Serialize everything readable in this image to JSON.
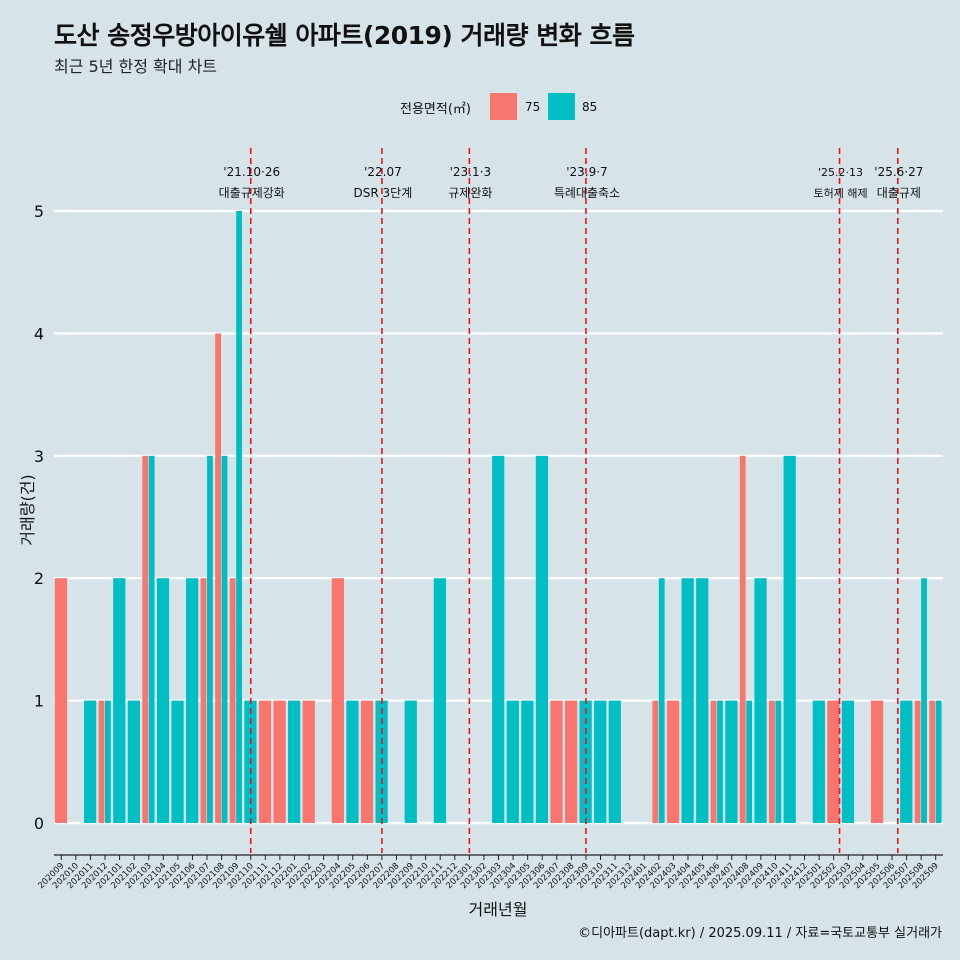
{
  "header": {
    "title": "도산 송정우방아이유쉘 아파트(2019) 거래량 변화 흐름",
    "subtitle": "최근 5년 한정 확대 차트"
  },
  "legend": {
    "title": "전용면적(㎡)",
    "items": [
      {
        "label": "75",
        "color": "#f8766d"
      },
      {
        "label": "85",
        "color": "#00bfc4"
      }
    ]
  },
  "caption": "©디아파트(dapt.kr) / 2025.09.11 / 자료=국토교통부 실거래가",
  "chart_data": {
    "type": "bar",
    "title": "도산 송정우방아이유쉘 아파트(2019) 거래량 변화 흐름",
    "xlabel": "거래년월",
    "ylabel": "거래량(건)",
    "ylim": [
      0,
      5
    ],
    "yticks": [
      0,
      1,
      2,
      3,
      4,
      5
    ],
    "categories": [
      "202009",
      "202010",
      "202011",
      "202012",
      "202101",
      "202102",
      "202103",
      "202104",
      "202105",
      "202106",
      "202107",
      "202108",
      "202109",
      "202110",
      "202111",
      "202112",
      "202201",
      "202202",
      "202203",
      "202204",
      "202205",
      "202206",
      "202207",
      "202208",
      "202209",
      "202210",
      "202211",
      "202212",
      "202301",
      "202302",
      "202303",
      "202304",
      "202305",
      "202306",
      "202307",
      "202308",
      "202309",
      "202310",
      "202311",
      "202312",
      "202401",
      "202402",
      "202403",
      "202404",
      "202405",
      "202406",
      "202407",
      "202408",
      "202409",
      "202410",
      "202411",
      "202412",
      "202501",
      "202502",
      "202503",
      "202504",
      "202505",
      "202506",
      "202507",
      "202508",
      "202509"
    ],
    "series": [
      {
        "name": "75",
        "color": "#f8766d",
        "values": [
          2,
          0,
          0,
          1,
          0,
          0,
          3,
          0,
          0,
          0,
          2,
          4,
          2,
          0,
          1,
          1,
          0,
          1,
          0,
          2,
          0,
          1,
          0,
          0,
          0,
          0,
          0,
          0,
          0,
          0,
          0,
          0,
          0,
          0,
          1,
          1,
          0,
          0,
          0,
          0,
          0,
          1,
          1,
          0,
          0,
          1,
          0,
          3,
          0,
          1,
          0,
          0,
          0,
          1,
          0,
          0,
          1,
          0,
          0,
          1,
          1
        ]
      },
      {
        "name": "85",
        "color": "#00bfc4",
        "values": [
          0,
          0,
          1,
          1,
          2,
          1,
          3,
          2,
          1,
          2,
          3,
          3,
          5,
          1,
          0,
          0,
          1,
          0,
          0,
          0,
          1,
          0,
          1,
          0,
          1,
          0,
          2,
          0,
          0,
          0,
          3,
          1,
          1,
          3,
          0,
          0,
          1,
          1,
          1,
          0,
          0,
          2,
          0,
          2,
          2,
          1,
          1,
          1,
          2,
          1,
          3,
          0,
          1,
          0,
          1,
          0,
          0,
          0,
          1,
          2,
          1
        ]
      }
    ],
    "events": [
      {
        "month": "202110",
        "date": "'21.10·26",
        "label": "대출규제강화",
        "offset": 0.0
      },
      {
        "month": "202207",
        "date": "'22.07",
        "label": "DSR 3단계",
        "offset": 0.0
      },
      {
        "month": "202301",
        "date": "'23.1·3",
        "label": "규제완화",
        "offset": 0.0
      },
      {
        "month": "202309",
        "date": "'23.9·7",
        "label": "특례대출축소",
        "offset": 0.0
      },
      {
        "month": "202502",
        "date": "'25.2·13",
        "label": "토허제 해제",
        "offset": 0.4
      },
      {
        "month": "202506",
        "date": "'25.6·27",
        "label": "대출규제",
        "offset": 0.4
      }
    ]
  }
}
